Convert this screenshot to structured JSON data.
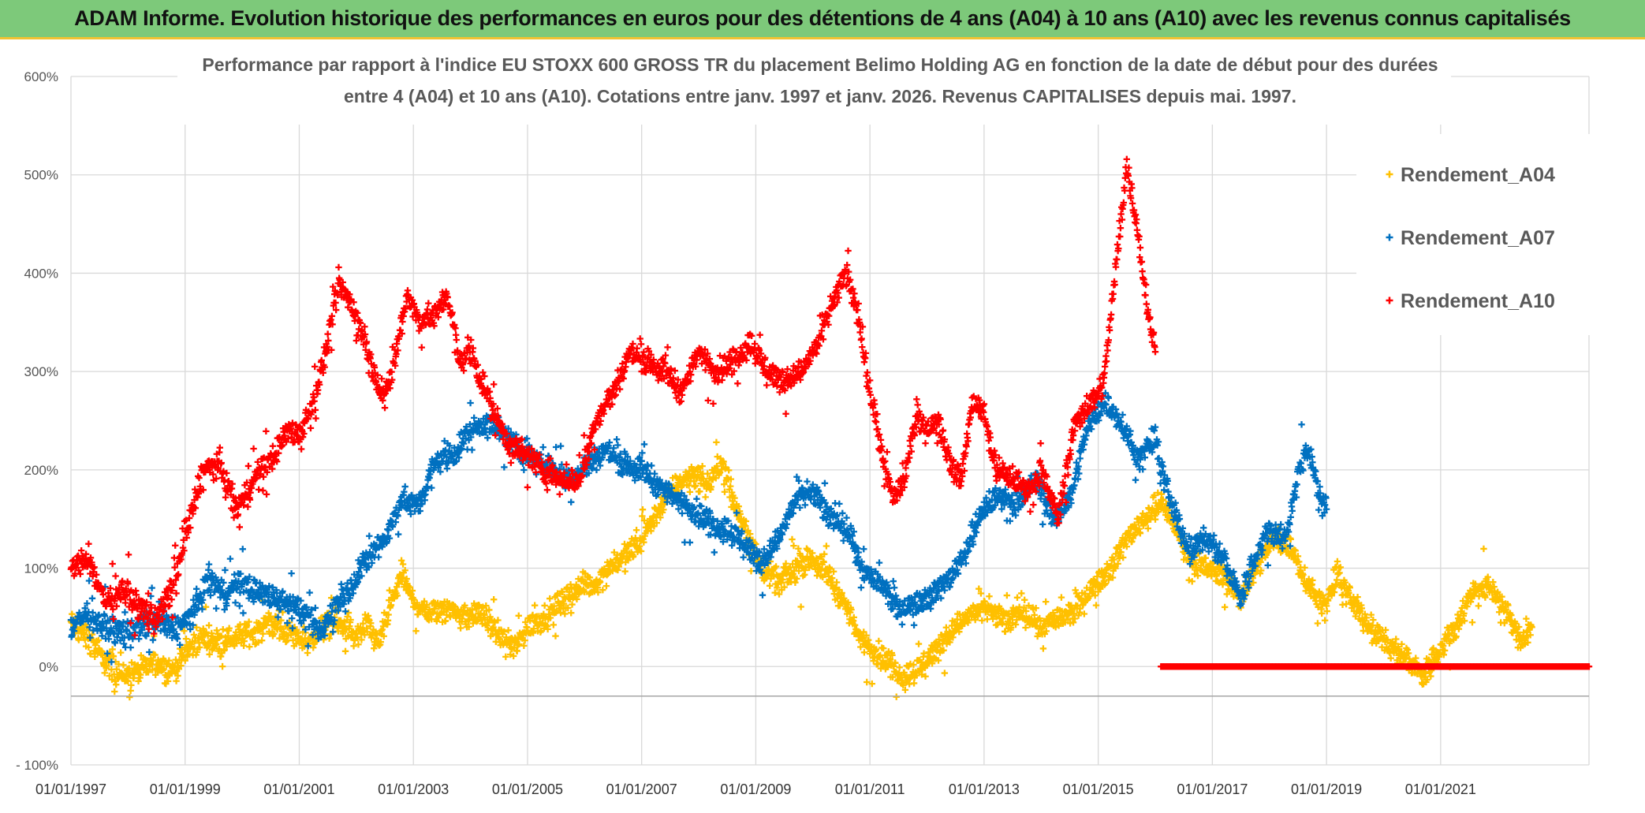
{
  "banner": {
    "text": "ADAM Informe. Evolution historique des performances en euros pour des détentions de 4 ans (A04) à 10 ans (A10) avec les revenus connus capitalisés"
  },
  "chart_data": {
    "type": "scatter",
    "title_lines": [
      "Performance par rapport à l'indice EU STOXX 600 GROSS TR  du placement Belimo Holding AG en fonction de la date de début pour des durées",
      "entre 4 (A04) et 10 ans (A10). Cotations entre janv. 1997 et janv. 2026. Revenus CAPITALISES depuis mai. 1997."
    ],
    "x_axis": {
      "type": "date",
      "range": [
        "1997-01-01",
        "2023-06-01"
      ],
      "tick_labels": [
        "01/01/1997",
        "01/01/1999",
        "01/01/2001",
        "01/01/2003",
        "01/01/2005",
        "01/01/2007",
        "01/01/2009",
        "01/01/2011",
        "01/01/2013",
        "01/01/2015",
        "01/01/2017",
        "01/01/2019",
        "01/01/2021"
      ],
      "tick_years": [
        1997,
        1999,
        2001,
        2003,
        2005,
        2007,
        2009,
        2011,
        2013,
        2015,
        2017,
        2019,
        2021
      ],
      "grid": true
    },
    "y_axis": {
      "range": [
        -100,
        600
      ],
      "ticks": [
        -100,
        0,
        100,
        200,
        300,
        400,
        500,
        600
      ],
      "tick_labels": [
        "- 100%",
        "0%",
        "100%",
        "200%",
        "300%",
        "400%",
        "500%",
        "600%"
      ],
      "grid": true
    },
    "legend": {
      "position": "right",
      "entries": [
        "Rendement_A04",
        "Rendement_A07",
        "Rendement_A10"
      ]
    },
    "series": [
      {
        "name": "Rendement_A04",
        "color": "#ffc000",
        "marker": "+",
        "points": [
          [
            1997.0,
            45
          ],
          [
            1997.3,
            30
          ],
          [
            1997.6,
            5
          ],
          [
            1997.9,
            -10
          ],
          [
            1998.2,
            -5
          ],
          [
            1998.5,
            5
          ],
          [
            1998.8,
            -5
          ],
          [
            1999.0,
            15
          ],
          [
            1999.3,
            30
          ],
          [
            1999.6,
            25
          ],
          [
            1999.9,
            30
          ],
          [
            2000.2,
            35
          ],
          [
            2000.5,
            45
          ],
          [
            2000.8,
            35
          ],
          [
            2001.0,
            30
          ],
          [
            2001.2,
            25
          ],
          [
            2001.4,
            40
          ],
          [
            2001.6,
            45
          ],
          [
            2001.8,
            40
          ],
          [
            2002.0,
            30
          ],
          [
            2002.2,
            40
          ],
          [
            2002.4,
            25
          ],
          [
            2002.6,
            60
          ],
          [
            2002.8,
            95
          ],
          [
            2003.0,
            65
          ],
          [
            2003.3,
            55
          ],
          [
            2003.6,
            60
          ],
          [
            2003.9,
            50
          ],
          [
            2004.2,
            55
          ],
          [
            2004.5,
            30
          ],
          [
            2004.8,
            20
          ],
          [
            2005.0,
            40
          ],
          [
            2005.3,
            50
          ],
          [
            2005.6,
            65
          ],
          [
            2005.9,
            80
          ],
          [
            2006.2,
            85
          ],
          [
            2006.5,
            105
          ],
          [
            2006.8,
            115
          ],
          [
            2007.0,
            130
          ],
          [
            2007.3,
            160
          ],
          [
            2007.6,
            185
          ],
          [
            2007.9,
            195
          ],
          [
            2008.2,
            185
          ],
          [
            2008.4,
            210
          ],
          [
            2008.6,
            170
          ],
          [
            2008.9,
            130
          ],
          [
            2009.1,
            100
          ],
          [
            2009.4,
            85
          ],
          [
            2009.7,
            100
          ],
          [
            2010.0,
            110
          ],
          [
            2010.3,
            90
          ],
          [
            2010.6,
            60
          ],
          [
            2010.8,
            30
          ],
          [
            2011.0,
            20
          ],
          [
            2011.3,
            5
          ],
          [
            2011.6,
            -10
          ],
          [
            2011.9,
            0
          ],
          [
            2012.2,
            20
          ],
          [
            2012.5,
            40
          ],
          [
            2012.8,
            55
          ],
          [
            2013.1,
            60
          ],
          [
            2013.4,
            45
          ],
          [
            2013.7,
            55
          ],
          [
            2014.0,
            40
          ],
          [
            2014.3,
            50
          ],
          [
            2014.6,
            55
          ],
          [
            2014.9,
            80
          ],
          [
            2015.2,
            100
          ],
          [
            2015.5,
            130
          ],
          [
            2015.8,
            150
          ],
          [
            2016.1,
            165
          ],
          [
            2016.3,
            150
          ],
          [
            2016.6,
            110
          ],
          [
            2016.9,
            100
          ],
          [
            2017.2,
            90
          ],
          [
            2017.5,
            70
          ],
          [
            2017.8,
            105
          ],
          [
            2018.1,
            130
          ],
          [
            2018.4,
            120
          ],
          [
            2018.7,
            80
          ],
          [
            2019.0,
            60
          ],
          [
            2019.2,
            95
          ],
          [
            2019.5,
            60
          ],
          [
            2019.8,
            40
          ],
          [
            2020.1,
            20
          ],
          [
            2020.4,
            10
          ],
          [
            2020.7,
            -10
          ],
          [
            2021.0,
            20
          ],
          [
            2021.3,
            45
          ],
          [
            2021.6,
            80
          ],
          [
            2021.9,
            80
          ],
          [
            2022.2,
            50
          ],
          [
            2022.4,
            25
          ],
          [
            2022.6,
            40
          ]
        ]
      },
      {
        "name": "Rendement_A07",
        "color": "#0070c0",
        "marker": "+",
        "points": [
          [
            1997.0,
            40
          ],
          [
            1997.3,
            55
          ],
          [
            1997.6,
            40
          ],
          [
            1997.9,
            35
          ],
          [
            1998.2,
            40
          ],
          [
            1998.5,
            45
          ],
          [
            1998.8,
            40
          ],
          [
            1999.0,
            45
          ],
          [
            1999.2,
            60
          ],
          [
            1999.4,
            90
          ],
          [
            1999.7,
            75
          ],
          [
            2000.0,
            85
          ],
          [
            2000.3,
            75
          ],
          [
            2000.6,
            70
          ],
          [
            2000.9,
            65
          ],
          [
            2001.2,
            45
          ],
          [
            2001.4,
            35
          ],
          [
            2001.6,
            60
          ],
          [
            2001.9,
            80
          ],
          [
            2002.2,
            110
          ],
          [
            2002.5,
            130
          ],
          [
            2002.8,
            170
          ],
          [
            2003.1,
            165
          ],
          [
            2003.4,
            210
          ],
          [
            2003.7,
            215
          ],
          [
            2004.0,
            240
          ],
          [
            2004.3,
            250
          ],
          [
            2004.6,
            235
          ],
          [
            2004.9,
            220
          ],
          [
            2005.2,
            210
          ],
          [
            2005.5,
            200
          ],
          [
            2005.8,
            190
          ],
          [
            2006.1,
            210
          ],
          [
            2006.4,
            220
          ],
          [
            2006.7,
            205
          ],
          [
            2007.0,
            200
          ],
          [
            2007.3,
            185
          ],
          [
            2007.6,
            170
          ],
          [
            2007.9,
            160
          ],
          [
            2008.2,
            145
          ],
          [
            2008.5,
            140
          ],
          [
            2008.8,
            125
          ],
          [
            2009.1,
            105
          ],
          [
            2009.4,
            130
          ],
          [
            2009.7,
            170
          ],
          [
            2010.0,
            180
          ],
          [
            2010.3,
            150
          ],
          [
            2010.6,
            140
          ],
          [
            2010.9,
            95
          ],
          [
            2011.2,
            85
          ],
          [
            2011.5,
            55
          ],
          [
            2011.8,
            65
          ],
          [
            2012.1,
            75
          ],
          [
            2012.4,
            90
          ],
          [
            2012.7,
            120
          ],
          [
            2013.0,
            160
          ],
          [
            2013.3,
            175
          ],
          [
            2013.6,
            165
          ],
          [
            2013.9,
            190
          ],
          [
            2014.2,
            150
          ],
          [
            2014.5,
            170
          ],
          [
            2014.8,
            240
          ],
          [
            2015.1,
            270
          ],
          [
            2015.4,
            250
          ],
          [
            2015.7,
            210
          ],
          [
            2016.0,
            230
          ],
          [
            2016.3,
            160
          ],
          [
            2016.6,
            120
          ],
          [
            2016.9,
            130
          ],
          [
            2017.2,
            110
          ],
          [
            2017.5,
            70
          ],
          [
            2017.8,
            120
          ],
          [
            2018.0,
            140
          ],
          [
            2018.3,
            130
          ],
          [
            2018.5,
            200
          ],
          [
            2018.7,
            220
          ],
          [
            2018.9,
            170
          ],
          [
            2019.0,
            160
          ]
        ]
      },
      {
        "name": "Rendement_A10",
        "color": "#ff0000",
        "marker": "+",
        "points": [
          [
            1997.0,
            100
          ],
          [
            1997.3,
            110
          ],
          [
            1997.6,
            65
          ],
          [
            1997.9,
            80
          ],
          [
            1998.2,
            60
          ],
          [
            1998.5,
            50
          ],
          [
            1998.8,
            80
          ],
          [
            1999.0,
            130
          ],
          [
            1999.3,
            200
          ],
          [
            1999.6,
            205
          ],
          [
            1999.9,
            160
          ],
          [
            2000.2,
            190
          ],
          [
            2000.5,
            210
          ],
          [
            2000.8,
            240
          ],
          [
            2001.0,
            235
          ],
          [
            2001.3,
            280
          ],
          [
            2001.5,
            330
          ],
          [
            2001.7,
            390
          ],
          [
            2001.9,
            370
          ],
          [
            2002.1,
            340
          ],
          [
            2002.3,
            300
          ],
          [
            2002.5,
            270
          ],
          [
            2002.7,
            320
          ],
          [
            2002.9,
            380
          ],
          [
            2003.1,
            350
          ],
          [
            2003.4,
            360
          ],
          [
            2003.6,
            380
          ],
          [
            2003.8,
            310
          ],
          [
            2004.0,
            320
          ],
          [
            2004.2,
            290
          ],
          [
            2004.4,
            260
          ],
          [
            2004.7,
            225
          ],
          [
            2005.0,
            215
          ],
          [
            2005.3,
            200
          ],
          [
            2005.6,
            190
          ],
          [
            2005.9,
            190
          ],
          [
            2006.2,
            250
          ],
          [
            2006.5,
            280
          ],
          [
            2006.8,
            320
          ],
          [
            2007.1,
            310
          ],
          [
            2007.4,
            300
          ],
          [
            2007.7,
            280
          ],
          [
            2008.0,
            320
          ],
          [
            2008.3,
            300
          ],
          [
            2008.6,
            310
          ],
          [
            2008.9,
            330
          ],
          [
            2009.2,
            300
          ],
          [
            2009.5,
            290
          ],
          [
            2009.8,
            300
          ],
          [
            2010.1,
            330
          ],
          [
            2010.4,
            380
          ],
          [
            2010.6,
            400
          ],
          [
            2010.8,
            350
          ],
          [
            2011.0,
            280
          ],
          [
            2011.2,
            220
          ],
          [
            2011.4,
            170
          ],
          [
            2011.6,
            190
          ],
          [
            2011.8,
            250
          ],
          [
            2012.0,
            240
          ],
          [
            2012.2,
            250
          ],
          [
            2012.4,
            210
          ],
          [
            2012.6,
            190
          ],
          [
            2012.8,
            270
          ],
          [
            2013.0,
            260
          ],
          [
            2013.2,
            200
          ],
          [
            2013.5,
            190
          ],
          [
            2013.8,
            180
          ],
          [
            2014.0,
            200
          ],
          [
            2014.3,
            150
          ],
          [
            2014.6,
            250
          ],
          [
            2014.9,
            270
          ],
          [
            2015.1,
            290
          ],
          [
            2015.3,
            400
          ],
          [
            2015.5,
            510
          ],
          [
            2015.7,
            440
          ],
          [
            2015.9,
            350
          ],
          [
            2016.0,
            320
          ]
        ]
      },
      {
        "name": "",
        "color": "#ff0000",
        "marker": "+",
        "points": [
          [
            2016.1,
            0
          ],
          [
            2023.6,
            0
          ]
        ]
      }
    ]
  }
}
